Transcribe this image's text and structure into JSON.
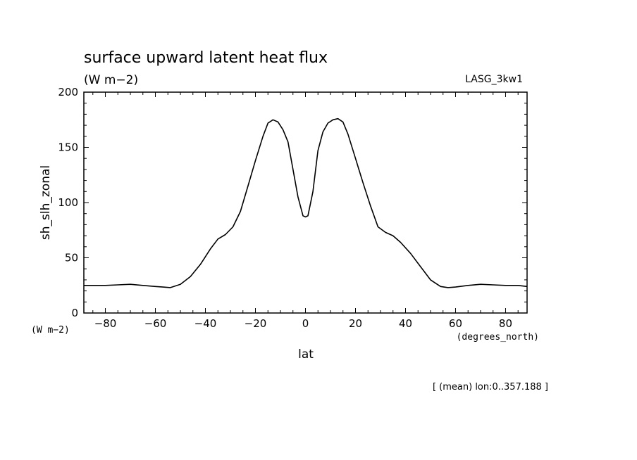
{
  "chart_data": {
    "type": "line",
    "title": "surface upward latent heat flux",
    "subtitle": "(W m−2)",
    "model_label": "LASG_3kw1",
    "ylabel": "sh_slh_zonal",
    "yunit": "(W m−2)",
    "xlabel": "lat",
    "xunit": "(degrees_north)",
    "footnote": "[ (mean) lon:0..357.188 ]",
    "xlim": [
      -88.6,
      88.6
    ],
    "ylim": [
      0,
      200
    ],
    "xticks": [
      -80,
      -60,
      -40,
      -20,
      0,
      20,
      40,
      60,
      80
    ],
    "xtick_labels": [
      "−80",
      "−60",
      "−40",
      "−20",
      "0",
      "20",
      "40",
      "60",
      "80"
    ],
    "yticks": [
      0,
      50,
      100,
      150,
      200
    ],
    "ytick_labels": [
      "0",
      "50",
      "100",
      "150",
      "200"
    ],
    "grid": false,
    "series": [
      {
        "x": [
          -88.6,
          -85,
          -80,
          -75,
          -70,
          -65,
          -60,
          -57,
          -54,
          -50,
          -46,
          -42,
          -38,
          -35,
          -32,
          -29,
          -26,
          -23,
          -20,
          -17,
          -15,
          -13,
          -11,
          -9,
          -7,
          -5,
          -3,
          -1,
          0,
          1,
          3,
          5,
          7,
          9,
          11,
          13,
          15,
          17,
          20,
          23,
          26,
          29,
          32,
          35,
          38,
          42,
          46,
          50,
          54,
          57,
          60,
          65,
          70,
          75,
          80,
          85,
          88.6
        ],
        "y": [
          25,
          25,
          25,
          25.5,
          26,
          25,
          24,
          23.5,
          23,
          26,
          33,
          44,
          58,
          67,
          71,
          78,
          92,
          115,
          138,
          160,
          172,
          175,
          173,
          166,
          155,
          130,
          105,
          88,
          87,
          88,
          110,
          147,
          164,
          172,
          175,
          176,
          173,
          162,
          140,
          118,
          97,
          78,
          73,
          70,
          64,
          54,
          42,
          30,
          24,
          23,
          23.5,
          25,
          26,
          25.5,
          25,
          25,
          24
        ]
      }
    ]
  }
}
